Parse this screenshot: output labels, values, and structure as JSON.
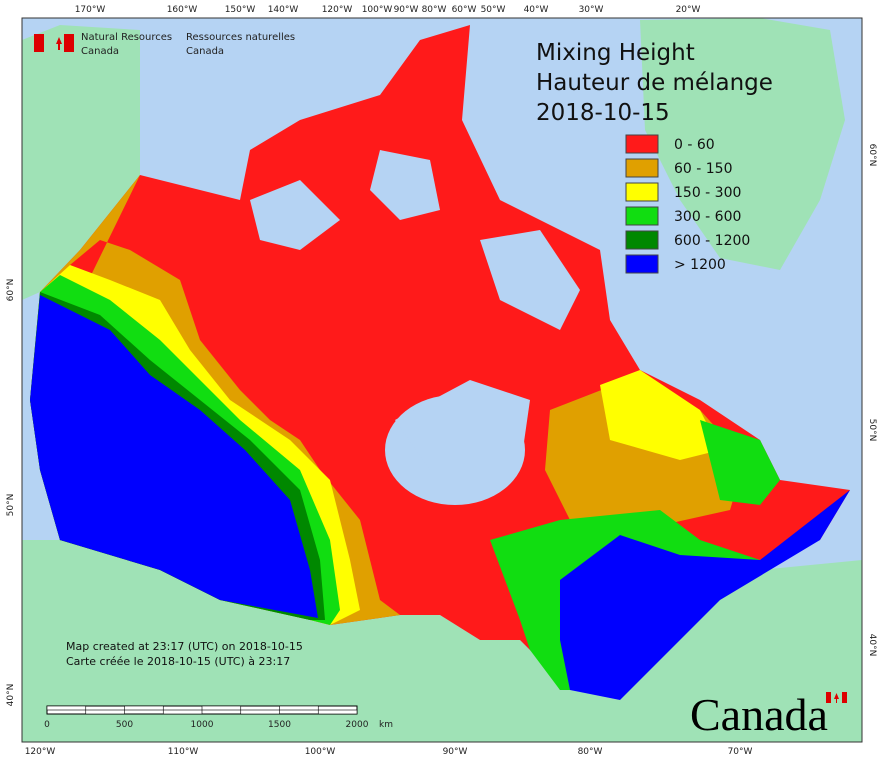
{
  "header": {
    "en": [
      "Natural Resources",
      "Canada"
    ],
    "fr": [
      "Ressources naturelles",
      "Canada"
    ]
  },
  "title": [
    "Mixing Height",
    "Hauteur de mélange",
    "2018-10-15"
  ],
  "legend": [
    {
      "label": "0 - 60",
      "color": "#ff1a1a"
    },
    {
      "label": "60 - 150",
      "color": "#e0a000"
    },
    {
      "label": "150 - 300",
      "color": "#ffff00"
    },
    {
      "label": "300 - 600",
      "color": "#11dd11"
    },
    {
      "label": "600 - 1200",
      "color": "#008800"
    },
    {
      "label": "> 1200",
      "color": "#0000ff"
    }
  ],
  "graticule": {
    "top": [
      "170°W",
      "160°W",
      "150°W",
      "140°W",
      "120°W",
      "100°W",
      "90°W",
      "80°W",
      "60°W",
      "50°W",
      "40°W",
      "30°W",
      "20°W"
    ],
    "bottom": [
      "120°W",
      "110°W",
      "100°W",
      "90°W",
      "80°W",
      "70°W"
    ],
    "left": [
      "60°N",
      "50°N",
      "40°N"
    ],
    "right": [
      "60°N",
      "50°N",
      "40°N"
    ]
  },
  "credits": [
    "Map created at 23:17 (UTC) on 2018-10-15",
    "Carte créée le 2018-10-15 (UTC) à 23:17"
  ],
  "scale": {
    "labels": [
      "0",
      "500",
      "1000",
      "1500",
      "2000"
    ],
    "unit": "km"
  },
  "wordmark": "Canada"
}
